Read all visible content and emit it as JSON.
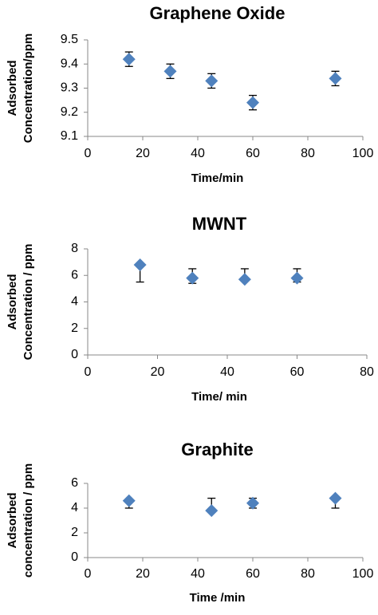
{
  "chart_data": [
    {
      "type": "scatter",
      "title": "Graphene Oxide",
      "xlabel": "Time/min",
      "ylabel": [
        "Adsorbed",
        "Concentration/ppm"
      ],
      "x": [
        15,
        30,
        45,
        60,
        90
      ],
      "values": [
        9.42,
        9.37,
        9.33,
        9.24,
        9.34
      ],
      "errors_minus": [
        0.03,
        0.03,
        0.03,
        0.03,
        0.03
      ],
      "errors_plus": [
        0.03,
        0.03,
        0.03,
        0.03,
        0.03
      ],
      "color": "#4f81bd",
      "xlim": [
        0,
        100
      ],
      "xticks": [
        0,
        20,
        40,
        60,
        80,
        100
      ],
      "ylim": [
        9.1,
        9.5
      ],
      "yticks": [
        9.1,
        9.2,
        9.3,
        9.4,
        9.5
      ]
    },
    {
      "type": "scatter",
      "title": "MWNT",
      "xlabel": "Time/ min",
      "ylabel": [
        "Adsorbed",
        "Concentration / ppm"
      ],
      "x": [
        15,
        30,
        45,
        60
      ],
      "values": [
        6.8,
        5.8,
        5.7,
        5.8
      ],
      "errors_minus": [
        1.3,
        0.4,
        0,
        0.3
      ],
      "errors_plus": [
        0,
        0.7,
        0.8,
        0.7
      ],
      "color": "#4f81bd",
      "xlim": [
        0,
        80
      ],
      "xticks": [
        0,
        20,
        40,
        60,
        80
      ],
      "ylim": [
        0,
        8
      ],
      "yticks": [
        0,
        2,
        4,
        6,
        8
      ]
    },
    {
      "type": "scatter",
      "title": "Graphite",
      "xlabel": "Time /min",
      "ylabel": [
        "Adsorbed",
        "concentration / ppm"
      ],
      "x": [
        15,
        45,
        60,
        90
      ],
      "values": [
        4.6,
        3.8,
        4.4,
        4.8
      ],
      "errors_minus": [
        0.6,
        0,
        0.4,
        0.8
      ],
      "errors_plus": [
        0,
        1.0,
        0.4,
        0
      ],
      "color": "#4f81bd",
      "xlim": [
        0,
        100
      ],
      "xticks": [
        0,
        20,
        40,
        60,
        80,
        100
      ],
      "ylim": [
        0,
        6
      ],
      "yticks": [
        0,
        2,
        4,
        6
      ]
    }
  ]
}
